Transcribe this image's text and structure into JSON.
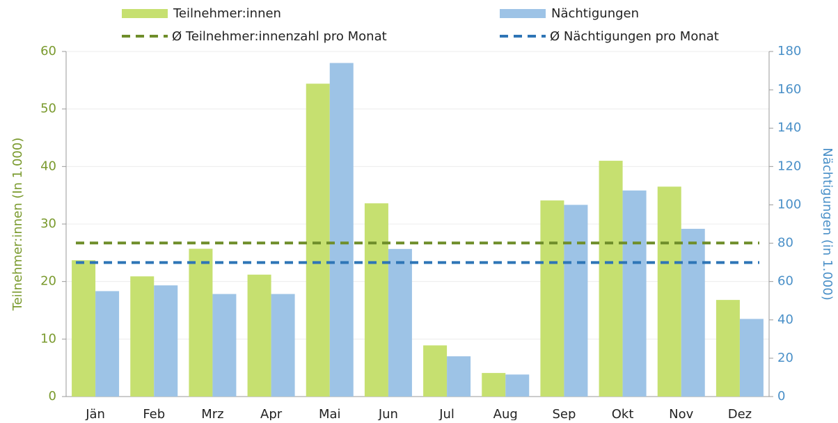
{
  "chart_data": {
    "type": "bar",
    "categories": [
      "Jän",
      "Feb",
      "Mrz",
      "Apr",
      "Mai",
      "Jun",
      "Jul",
      "Aug",
      "Sep",
      "Okt",
      "Nov",
      "Dez"
    ],
    "series": [
      {
        "name": "Teilnehmer:innen",
        "color": "#c6e070",
        "values": [
          23.7,
          20.9,
          25.7,
          21.2,
          54.4,
          33.6,
          8.9,
          4.1,
          34.1,
          41,
          36.5,
          16.8
        ]
      },
      {
        "name": "Nächtigungen",
        "color": "#9dc3e6",
        "axis": "y2",
        "values": [
          55,
          58,
          53.5,
          53.5,
          174,
          77,
          21,
          11.5,
          100,
          107.5,
          87.5,
          40.5
        ]
      }
    ],
    "reference_lines": [
      {
        "name": "Ø Teilnehmer:innenzahl pro Monat",
        "color": "#6f8e2a",
        "value": 26.7
      },
      {
        "name": "Ø Nächtigungen pro Monat",
        "color": "#2e75b6",
        "axis": "y2",
        "value": 69.9
      }
    ],
    "ylabel": "Teilnehmer:innen (In 1.000)",
    "y2label": "Nächtigungen (in 1.000)",
    "ylim": [
      0,
      60
    ],
    "yticks": [
      0,
      10,
      20,
      30,
      40,
      50,
      60
    ],
    "y2lim": [
      0,
      180
    ],
    "y2ticks": [
      0,
      20,
      40,
      60,
      80,
      100,
      120,
      140,
      160,
      180
    ],
    "grid": true,
    "legend": "top"
  }
}
